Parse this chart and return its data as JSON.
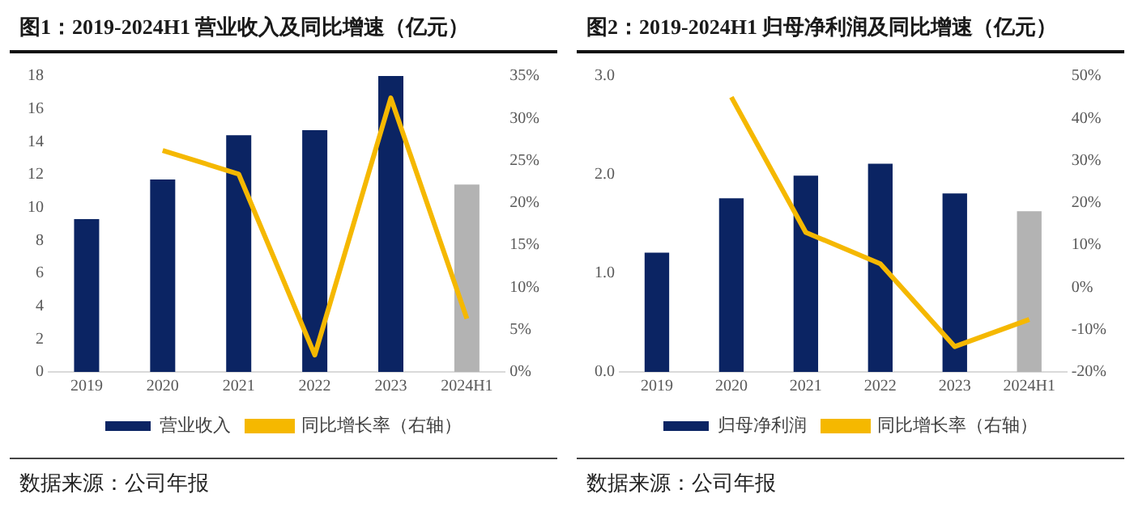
{
  "chart_data": [
    {
      "type": "bar",
      "title": "图1：2019-2024H1 营业收入及同比增速（亿元）",
      "categories": [
        "2019",
        "2020",
        "2021",
        "2022",
        "2023",
        "2024H1"
      ],
      "series": [
        {
          "name": "营业收入",
          "colors": [
            "#0b2463",
            "#0b2463",
            "#0b2463",
            "#0b2463",
            "#0b2463",
            "#b3b3b3"
          ],
          "values": [
            9.3,
            11.7,
            14.4,
            14.7,
            18.0,
            11.4
          ]
        },
        {
          "name": "同比增长率（右轴）",
          "type": "line",
          "axis": "y2",
          "color": "#f5b800",
          "values": [
            null,
            26.2,
            23.4,
            2.0,
            32.4,
            6.3
          ]
        }
      ],
      "ylim": [
        0,
        18
      ],
      "yticks": [
        0,
        2,
        4,
        6,
        8,
        10,
        12,
        14,
        16,
        18
      ],
      "y2lim": [
        0,
        35
      ],
      "y2ticks": [
        {
          "value": 0,
          "label": "0%"
        },
        {
          "value": 5,
          "label": "5%"
        },
        {
          "value": 10,
          "label": "10%"
        },
        {
          "value": 15,
          "label": "15%"
        },
        {
          "value": 20,
          "label": "20%"
        },
        {
          "value": 25,
          "label": "25%"
        },
        {
          "value": 30,
          "label": "30%"
        },
        {
          "value": 35,
          "label": "35%"
        }
      ],
      "grid": false,
      "legend": "bottom",
      "marker": "none",
      "annotations": [
        "数据来源：公司年报"
      ]
    },
    {
      "type": "bar",
      "title": "图2：2019-2024H1 归母净利润及同比增速（亿元）",
      "categories": [
        "2019",
        "2020",
        "2021",
        "2022",
        "2023",
        "2024H1"
      ],
      "series": [
        {
          "name": "归母净利润",
          "colors": [
            "#0b2463",
            "#0b2463",
            "#0b2463",
            "#0b2463",
            "#0b2463",
            "#b3b3b3"
          ],
          "values": [
            1.21,
            1.76,
            1.99,
            2.11,
            1.81,
            1.63
          ]
        },
        {
          "name": "同比增长率（右轴）",
          "type": "line",
          "axis": "y2",
          "color": "#f5b800",
          "values": [
            null,
            45,
            13,
            5.6,
            -14,
            -7.6
          ]
        }
      ],
      "ylim": [
        0,
        3
      ],
      "yticks": [
        {
          "value": 0,
          "label": "0.0"
        },
        {
          "value": 1,
          "label": "1.0"
        },
        {
          "value": 2,
          "label": "2.0"
        },
        {
          "value": 3,
          "label": "3.0"
        }
      ],
      "y2lim": [
        -20,
        50
      ],
      "y2ticks": [
        {
          "value": -20,
          "label": "-20%"
        },
        {
          "value": -10,
          "label": "-10%"
        },
        {
          "value": 0,
          "label": "0%"
        },
        {
          "value": 10,
          "label": "10%"
        },
        {
          "value": 20,
          "label": "20%"
        },
        {
          "value": 30,
          "label": "30%"
        },
        {
          "value": 40,
          "label": "40%"
        },
        {
          "value": 50,
          "label": "50%"
        }
      ],
      "grid": false,
      "legend": "bottom",
      "marker": "none",
      "annotations": [
        "数据来源：公司年报"
      ]
    }
  ]
}
